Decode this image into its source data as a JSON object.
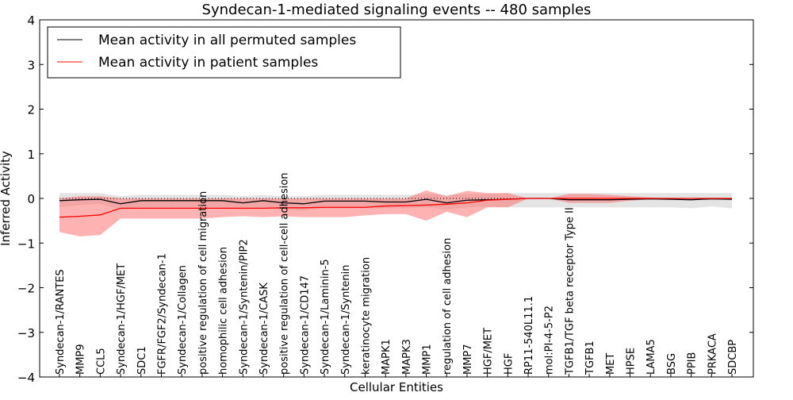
{
  "chart_data": {
    "type": "line",
    "title": "Syndecan-1-mediated signaling events -- 480 samples",
    "xlabel": "Cellular Entities",
    "ylabel": "Inferred Activity",
    "ylim": [
      -4,
      4
    ],
    "yticks": [
      "4",
      "3",
      "2",
      "1",
      "0",
      "−1",
      "−2",
      "−3",
      "−4"
    ],
    "ytick_values": [
      4,
      3,
      2,
      1,
      0,
      -1,
      -2,
      -3,
      -4
    ],
    "legend": {
      "placement": "top-left",
      "entries": [
        "Mean activity in all permuted samples",
        "Mean activity in patient samples"
      ]
    },
    "colors": {
      "permuted": "#000000",
      "patient": "#ff0000",
      "permuted_band": "#bbbbbb",
      "patient_band": "#ff6666"
    },
    "categories": [
      "Syndecan-1/RANTES",
      "MMP9",
      "CCL5",
      "Syndecan-1/HGF/MET",
      "SDC1",
      "FGFR/FGF2/Syndecan-1",
      "Syndecan-1/Collagen",
      "positive regulation of cell migration",
      "homophilic cell adhesion",
      "Syndecan-1/Syntenin/PIP2",
      "Syndecan-1/CASK",
      "positive regulation of cell-cell adhesion",
      "Syndecan-1/CD147",
      "Syndecan-1/Laminin-5",
      "Syndecan-1/Syntenin",
      "keratinocyte migration",
      "MAPK1",
      "MAPK3",
      "MMP1",
      "regulation of cell adhesion",
      "MMP7",
      "HGF/MET",
      "HGF",
      "RP11-540L11.1",
      "mol:PI-4-5-P2",
      "TGFB1/TGF beta receptor Type II",
      "TGFB1",
      "MET",
      "HPSE",
      "LAMA5",
      "BSG",
      "PPIB",
      "PRKACA",
      "SDCBP"
    ],
    "series": [
      {
        "name": "Mean activity in all permuted samples",
        "values": [
          -0.05,
          -0.03,
          -0.02,
          -0.12,
          -0.05,
          -0.05,
          -0.05,
          -0.05,
          -0.05,
          -0.1,
          -0.05,
          -0.1,
          -0.12,
          -0.06,
          -0.06,
          -0.06,
          -0.08,
          -0.08,
          -0.02,
          -0.1,
          -0.04,
          -0.03,
          -0.02,
          0,
          0,
          -0.03,
          -0.03,
          -0.03,
          -0.02,
          -0.01,
          -0.02,
          -0.03,
          -0.01,
          -0.02
        ],
        "upper": [
          0.12,
          0.12,
          0.12,
          0.05,
          0.08,
          0.08,
          0.08,
          0.08,
          0.08,
          0.05,
          0.08,
          0.05,
          0.05,
          0.08,
          0.08,
          0.08,
          0.08,
          0.08,
          0.1,
          0.08,
          0.1,
          0.1,
          0.12,
          0.12,
          0.12,
          0.12,
          0.12,
          0.12,
          0.12,
          0.12,
          0.12,
          0.12,
          0.12,
          0.12
        ],
        "lower": [
          -0.2,
          -0.15,
          -0.12,
          -0.25,
          -0.2,
          -0.2,
          -0.2,
          -0.2,
          -0.2,
          -0.25,
          -0.2,
          -0.25,
          -0.27,
          -0.22,
          -0.22,
          -0.22,
          -0.22,
          -0.22,
          -0.2,
          -0.25,
          -0.2,
          -0.18,
          -0.2,
          -0.2,
          -0.2,
          -0.2,
          -0.2,
          -0.2,
          -0.2,
          -0.2,
          -0.2,
          -0.22,
          -0.18,
          -0.22
        ]
      },
      {
        "name": "Mean activity in patient samples",
        "values": [
          -0.42,
          -0.4,
          -0.37,
          -0.22,
          -0.22,
          -0.22,
          -0.22,
          -0.22,
          -0.22,
          -0.22,
          -0.22,
          -0.21,
          -0.21,
          -0.2,
          -0.2,
          -0.2,
          -0.17,
          -0.16,
          -0.15,
          -0.13,
          -0.1,
          -0.04,
          -0.02,
          0,
          0,
          0,
          0,
          0,
          0,
          0,
          0,
          0,
          0,
          0
        ],
        "upper": [
          0,
          0.05,
          0.05,
          0,
          0,
          0,
          0,
          0,
          0,
          0,
          0,
          0,
          0,
          0,
          0,
          0,
          0,
          0,
          0.18,
          0.05,
          0.17,
          0.12,
          0.12,
          0,
          0,
          0.1,
          0.1,
          0.08,
          0.05,
          0.02,
          0,
          0,
          0,
          0
        ],
        "lower": [
          -0.75,
          -0.85,
          -0.82,
          -0.45,
          -0.45,
          -0.45,
          -0.45,
          -0.45,
          -0.42,
          -0.4,
          -0.42,
          -0.4,
          -0.42,
          -0.42,
          -0.42,
          -0.38,
          -0.35,
          -0.35,
          -0.5,
          -0.3,
          -0.42,
          -0.2,
          -0.2,
          0,
          0,
          -0.1,
          -0.1,
          -0.1,
          -0.05,
          -0.02,
          0,
          0,
          0,
          0
        ]
      }
    ]
  }
}
